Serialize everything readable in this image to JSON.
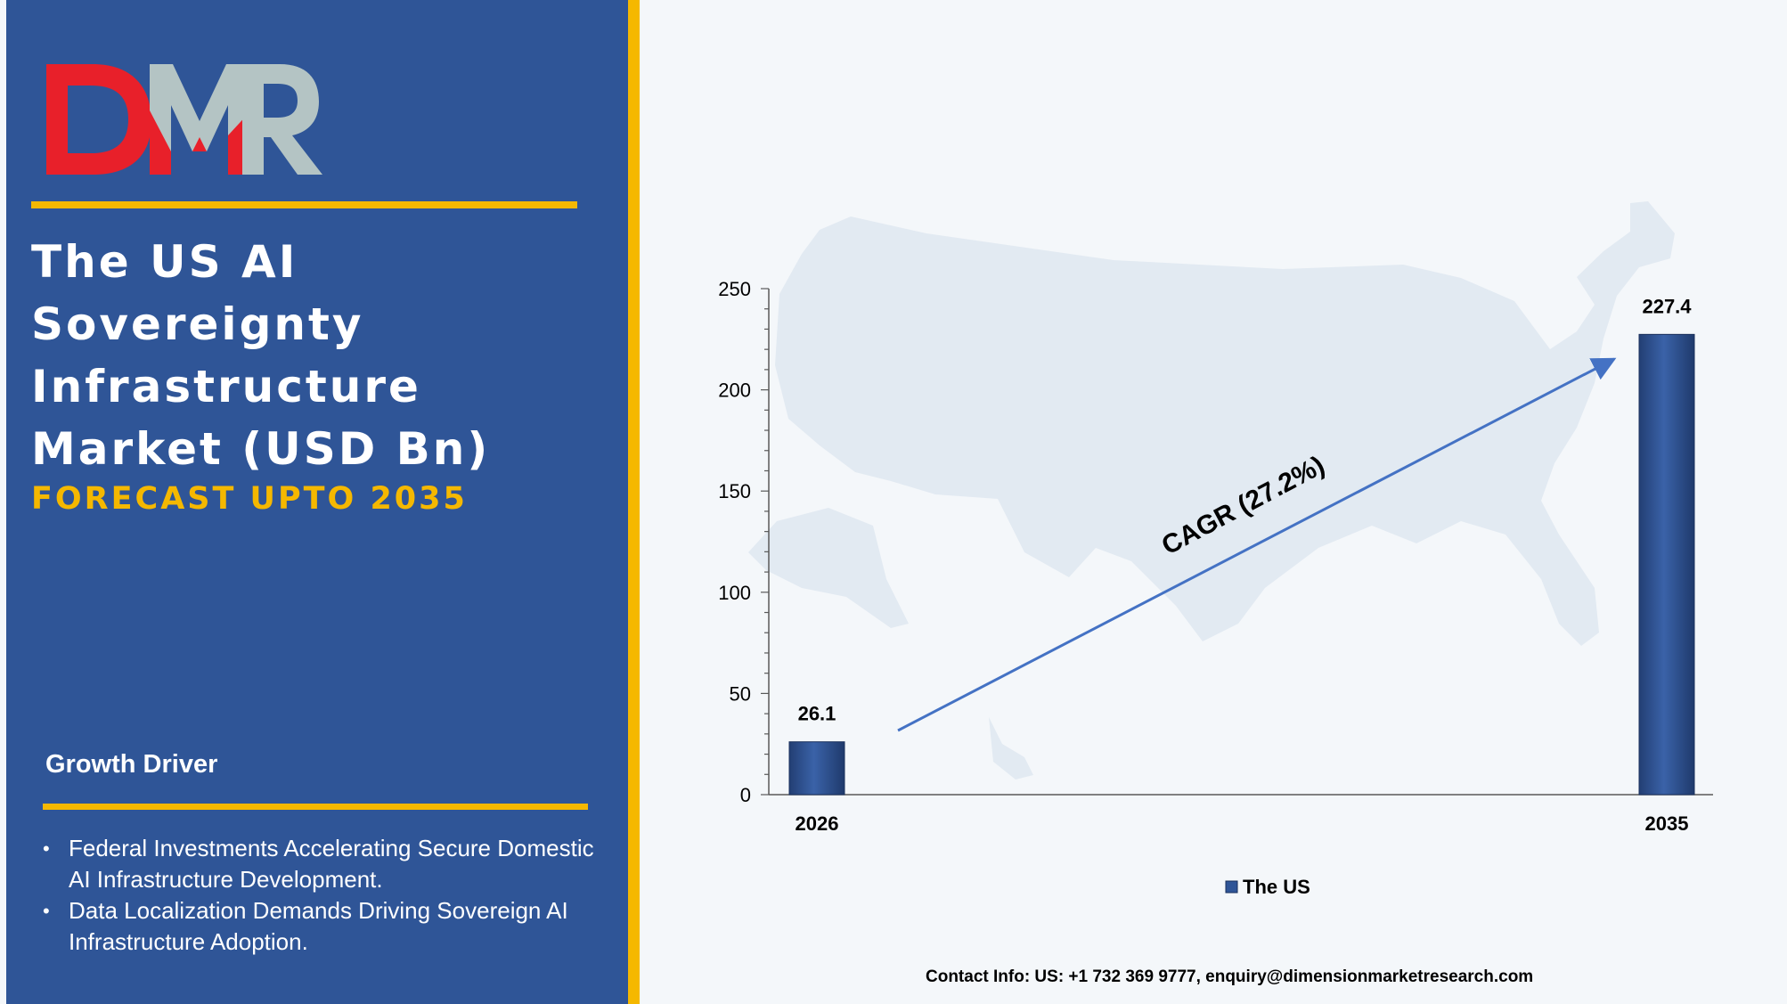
{
  "brand": {
    "logo_text": "DMR",
    "colors": {
      "panel": "#2f5597",
      "gold": "#f5b800",
      "logo_red": "#e8202a",
      "logo_gray": "#b4c4c4"
    }
  },
  "title": "The US AI Sovereignty Infrastructure Market (USD Bn)",
  "subtitle": "FORECAST UPTO 2035",
  "growth_driver": {
    "heading": "Growth Driver",
    "items": [
      "Federal Investments Accelerating Secure Domestic AI Infrastructure Development.",
      "Data Localization Demands Driving Sovereign AI Infrastructure Adoption."
    ]
  },
  "chart_data": {
    "type": "bar",
    "categories": [
      "2026",
      "2035"
    ],
    "series": [
      {
        "name": "The US",
        "values": [
          26.1,
          227.4
        ],
        "color": "#2f5597"
      }
    ],
    "data_labels": [
      "26.1",
      "227.4"
    ],
    "ylim": [
      0,
      250
    ],
    "yticks": [
      0,
      50,
      100,
      150,
      200,
      250
    ],
    "xlabel": "",
    "ylabel": "",
    "legend": "bottom",
    "grid": false,
    "annotation": "CAGR (27.2%)",
    "background_icon": "us-map-silhouette"
  },
  "contact": "Contact Info: US: +1 732 369 9777, enquiry@dimensionmarketresearch.com"
}
